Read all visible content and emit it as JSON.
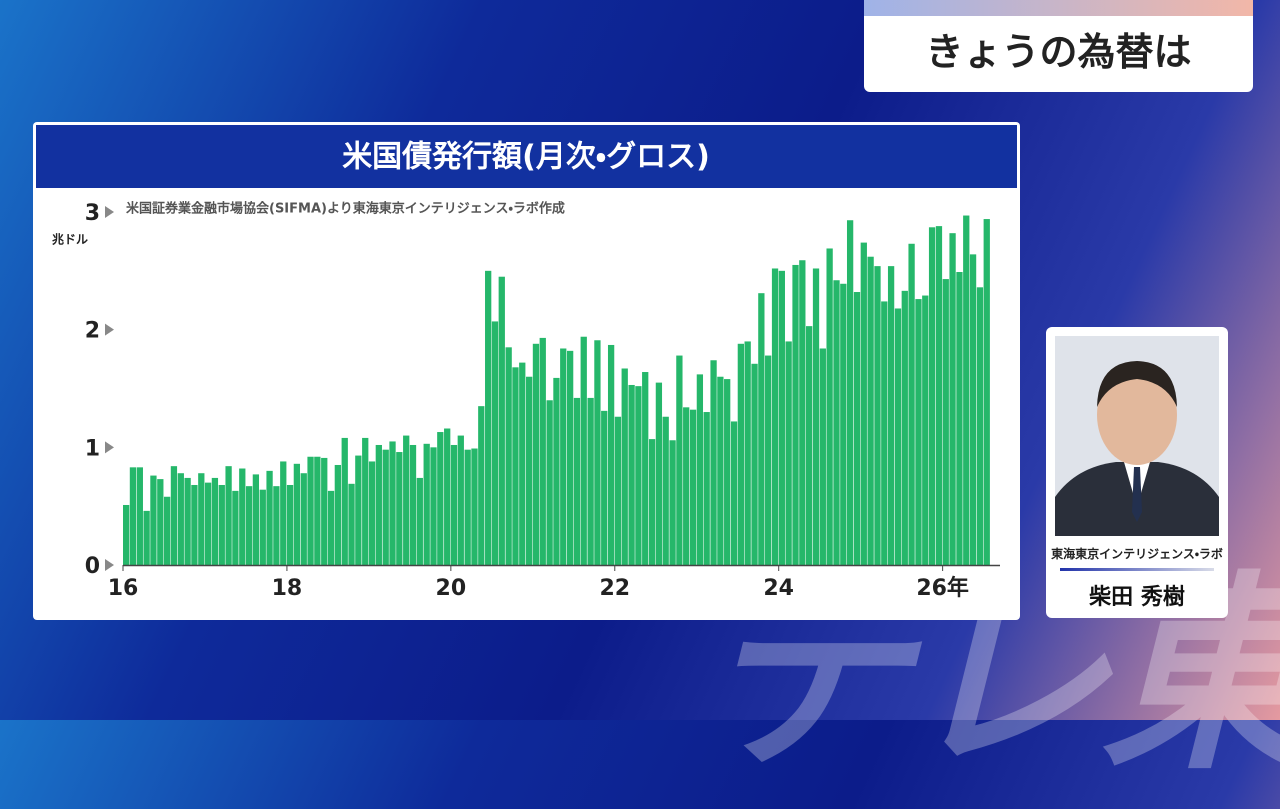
{
  "header": {
    "label": "きょうの為替は"
  },
  "chart_data": {
    "type": "bar",
    "title": "米国債発行額(月次・グロス)",
    "source": "米国証券業金融市場協会(SIFMA)より東海東京インテリジェンス・ラボ作成",
    "y_unit": "兆ドル",
    "color": "#25b76a",
    "x": [
      16,
      16.083,
      16.167,
      16.25,
      16.333,
      16.417,
      16.5,
      16.583,
      16.667,
      16.75,
      16.833,
      16.917,
      17,
      17.083,
      17.167,
      17.25,
      17.333,
      17.417,
      17.5,
      17.583,
      17.667,
      17.75,
      17.833,
      17.917,
      18,
      18.083,
      18.167,
      18.25,
      18.333,
      18.417,
      18.5,
      18.583,
      18.667,
      18.75,
      18.833,
      18.917,
      19,
      19.083,
      19.167,
      19.25,
      19.333,
      19.417,
      19.5,
      19.583,
      19.667,
      19.75,
      19.833,
      19.917,
      20,
      20.083,
      20.167,
      20.25,
      20.333,
      20.417,
      20.5,
      20.583,
      20.667,
      20.75,
      20.833,
      20.917,
      21,
      21.083,
      21.167,
      21.25,
      21.333,
      21.417,
      21.5,
      21.583,
      21.667,
      21.75,
      21.833,
      21.917,
      22,
      22.083,
      22.167,
      22.25,
      22.333,
      22.417,
      22.5,
      22.583,
      22.667,
      22.75,
      22.833,
      22.917,
      23,
      23.083,
      23.167,
      23.25,
      23.333,
      23.417,
      23.5,
      23.583,
      23.667,
      23.75,
      23.833,
      23.917,
      24,
      24.083,
      24.167,
      24.25,
      24.333,
      24.417,
      24.5,
      24.583,
      24.667,
      24.75,
      24.833,
      24.917,
      25,
      25.083,
      25.167,
      25.25,
      25.333,
      25.417,
      25.5,
      25.583,
      25.667,
      25.75,
      25.833,
      25.917,
      26,
      26.083,
      26.167,
      26.25,
      26.333,
      26.417,
      26.5
    ],
    "values": [
      0.51,
      0.83,
      0.83,
      0.46,
      0.76,
      0.73,
      0.58,
      0.84,
      0.78,
      0.74,
      0.68,
      0.78,
      0.7,
      0.74,
      0.68,
      0.84,
      0.63,
      0.82,
      0.67,
      0.77,
      0.64,
      0.8,
      0.67,
      0.88,
      0.68,
      0.86,
      0.78,
      0.92,
      0.92,
      0.91,
      0.63,
      0.85,
      1.08,
      0.69,
      0.93,
      1.08,
      0.88,
      1.02,
      0.98,
      1.05,
      0.96,
      1.1,
      1.02,
      0.74,
      1.03,
      1.0,
      1.13,
      1.16,
      1.02,
      1.1,
      0.98,
      0.99,
      1.35,
      2.5,
      2.07,
      2.45,
      1.85,
      1.68,
      1.72,
      1.6,
      1.88,
      1.93,
      1.4,
      1.59,
      1.84,
      1.82,
      1.42,
      1.94,
      1.42,
      1.91,
      1.31,
      1.87,
      1.26,
      1.67,
      1.53,
      1.52,
      1.64,
      1.07,
      1.55,
      1.26,
      1.06,
      1.78,
      1.34,
      1.32,
      1.62,
      1.3,
      1.74,
      1.6,
      1.58,
      1.22,
      1.88,
      1.9,
      1.71,
      2.31,
      1.78,
      2.52,
      2.5,
      1.9,
      2.55,
      2.59,
      2.03,
      2.52,
      1.84,
      2.69,
      2.42,
      2.39,
      2.93,
      2.32,
      2.74,
      2.62,
      2.54,
      2.24,
      2.54,
      2.18,
      2.33,
      2.73,
      2.26,
      2.29,
      2.87,
      2.88,
      2.43,
      2.82,
      2.49,
      2.97,
      2.64,
      2.36,
      2.94
    ],
    "xlim": [
      16,
      26.7
    ],
    "xticks": [
      16,
      18,
      20,
      22,
      24,
      {
        "value": 26,
        "label": "26年"
      }
    ],
    "ylim": [
      0,
      3
    ],
    "yticks": [
      0,
      1,
      2,
      3
    ]
  },
  "speaker": {
    "affiliation": "東海東京インテリジェンス・ラボ",
    "name": "柴田 秀樹"
  },
  "watermark": "テレ東"
}
